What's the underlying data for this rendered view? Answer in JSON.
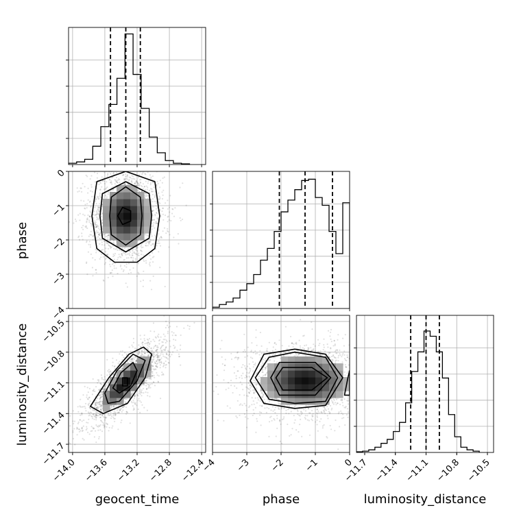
{
  "chart_data": {
    "type": "corner",
    "parameters": [
      "geocent_time",
      "phase",
      "luminosity_distance"
    ],
    "grid": true,
    "panels": [
      {
        "id": "hist-geocent_time",
        "type": "histogram",
        "parameter": "geocent_time",
        "xlim": [
          -14.05,
          -12.35
        ],
        "xticks": [
          -14.0,
          -13.6,
          -13.2,
          -12.8,
          -12.4
        ],
        "xtick_labels": [
          "−14.0",
          "−13.6",
          "−13.2",
          "−12.8",
          "−12.4"
        ],
        "bins": [
          {
            "x0": -14.05,
            "x1": -13.95,
            "y": 0.01
          },
          {
            "x0": -13.95,
            "x1": -13.85,
            "y": 0.02
          },
          {
            "x0": -13.85,
            "x1": -13.75,
            "y": 0.04
          },
          {
            "x0": -13.75,
            "x1": -13.65,
            "y": 0.14
          },
          {
            "x0": -13.65,
            "x1": -13.55,
            "y": 0.29
          },
          {
            "x0": -13.55,
            "x1": -13.45,
            "y": 0.46
          },
          {
            "x0": -13.45,
            "x1": -13.35,
            "y": 0.66
          },
          {
            "x0": -13.35,
            "x1": -13.25,
            "y": 1.0
          },
          {
            "x0": -13.25,
            "x1": -13.15,
            "y": 0.69
          },
          {
            "x0": -13.15,
            "x1": -13.05,
            "y": 0.43
          },
          {
            "x0": -13.05,
            "x1": -12.95,
            "y": 0.21
          },
          {
            "x0": -12.95,
            "x1": -12.85,
            "y": 0.09
          },
          {
            "x0": -12.85,
            "x1": -12.75,
            "y": 0.03
          },
          {
            "x0": -12.75,
            "x1": -12.65,
            "y": 0.01
          },
          {
            "x0": -12.65,
            "x1": -12.55,
            "y": 0.005
          }
        ],
        "quantiles": [
          -13.53,
          -13.34,
          -13.16
        ]
      },
      {
        "id": "hist-phase",
        "type": "histogram",
        "parameter": "phase",
        "xlim": [
          -4.0,
          0.0
        ],
        "xticks": [
          -4,
          -3,
          -2,
          -1,
          0
        ],
        "xtick_labels": [
          "−4",
          "−3",
          "−2",
          "−1",
          "0"
        ],
        "bins": [
          {
            "x0": -4.0,
            "x1": -3.8,
            "y": 0.01
          },
          {
            "x0": -3.8,
            "x1": -3.6,
            "y": 0.03
          },
          {
            "x0": -3.6,
            "x1": -3.4,
            "y": 0.05
          },
          {
            "x0": -3.4,
            "x1": -3.2,
            "y": 0.08
          },
          {
            "x0": -3.2,
            "x1": -3.0,
            "y": 0.14
          },
          {
            "x0": -3.0,
            "x1": -2.8,
            "y": 0.19
          },
          {
            "x0": -2.8,
            "x1": -2.6,
            "y": 0.26
          },
          {
            "x0": -2.6,
            "x1": -2.4,
            "y": 0.37
          },
          {
            "x0": -2.4,
            "x1": -2.2,
            "y": 0.46
          },
          {
            "x0": -2.2,
            "x1": -2.0,
            "y": 0.59
          },
          {
            "x0": -2.0,
            "x1": -1.8,
            "y": 0.74
          },
          {
            "x0": -1.8,
            "x1": -1.6,
            "y": 0.83
          },
          {
            "x0": -1.6,
            "x1": -1.4,
            "y": 0.91
          },
          {
            "x0": -1.4,
            "x1": -1.2,
            "y": 0.98
          },
          {
            "x0": -1.2,
            "x1": -1.0,
            "y": 0.99
          },
          {
            "x0": -1.0,
            "x1": -0.8,
            "y": 0.85
          },
          {
            "x0": -0.8,
            "x1": -0.6,
            "y": 0.79
          },
          {
            "x0": -0.6,
            "x1": -0.4,
            "y": 0.59
          },
          {
            "x0": -0.4,
            "x1": -0.2,
            "y": 0.42
          },
          {
            "x0": -0.2,
            "x1": 0.0,
            "y": 0.81
          }
        ],
        "quantiles": [
          -2.05,
          -1.3,
          -0.5
        ]
      },
      {
        "id": "hist-luminosity_distance",
        "type": "histogram",
        "parameter": "luminosity_distance",
        "xlim": [
          -11.78,
          -10.44
        ],
        "xticks": [
          -11.7,
          -11.4,
          -11.1,
          -10.8,
          -10.5
        ],
        "xtick_labels": [
          "−11.7",
          "−11.4",
          "−11.1",
          "−10.8",
          "−10.5"
        ],
        "bins": [
          {
            "x0": -11.78,
            "x1": -11.72,
            "y": 0.005
          },
          {
            "x0": -11.72,
            "x1": -11.66,
            "y": 0.01
          },
          {
            "x0": -11.66,
            "x1": -11.6,
            "y": 0.02
          },
          {
            "x0": -11.6,
            "x1": -11.54,
            "y": 0.04
          },
          {
            "x0": -11.54,
            "x1": -11.48,
            "y": 0.07
          },
          {
            "x0": -11.48,
            "x1": -11.42,
            "y": 0.1
          },
          {
            "x0": -11.42,
            "x1": -11.36,
            "y": 0.16
          },
          {
            "x0": -11.36,
            "x1": -11.3,
            "y": 0.23
          },
          {
            "x0": -11.3,
            "x1": -11.24,
            "y": 0.38
          },
          {
            "x0": -11.24,
            "x1": -11.18,
            "y": 0.62
          },
          {
            "x0": -11.18,
            "x1": -11.12,
            "y": 0.77
          },
          {
            "x0": -11.12,
            "x1": -11.06,
            "y": 0.93
          },
          {
            "x0": -11.06,
            "x1": -11.0,
            "y": 0.89
          },
          {
            "x0": -11.0,
            "x1": -10.94,
            "y": 0.77
          },
          {
            "x0": -10.94,
            "x1": -10.88,
            "y": 0.57
          },
          {
            "x0": -10.88,
            "x1": -10.82,
            "y": 0.29
          },
          {
            "x0": -10.82,
            "x1": -10.76,
            "y": 0.12
          },
          {
            "x0": -10.76,
            "x1": -10.7,
            "y": 0.04
          },
          {
            "x0": -10.7,
            "x1": -10.64,
            "y": 0.02
          },
          {
            "x0": -10.64,
            "x1": -10.58,
            "y": 0.01
          }
        ],
        "quantiles": [
          -11.25,
          -11.1,
          -10.97
        ]
      },
      {
        "id": "scatter-geocent_time-phase",
        "type": "2d-density",
        "x": "geocent_time",
        "y": "phase",
        "xlim": [
          -14.05,
          -12.35
        ],
        "ylim": [
          -4.0,
          0.0
        ],
        "yticks": [
          0,
          -1,
          -2,
          -3,
          -4
        ],
        "ytick_labels": [
          "0",
          "−1",
          "−2",
          "−3",
          "−4"
        ],
        "center": [
          -13.34,
          -1.3
        ],
        "sigma": [
          0.18,
          0.55
        ],
        "correlation": 0.0,
        "density_peak": [
          -13.34,
          -1.3
        ],
        "contours": [
          [
            [
              -13.34,
              -0.45
            ],
            [
              -13.16,
              -0.75
            ],
            [
              -13.14,
              -1.3
            ],
            [
              -13.16,
              -1.85
            ],
            [
              -13.34,
              -2.15
            ],
            [
              -13.52,
              -1.85
            ],
            [
              -13.54,
              -1.3
            ],
            [
              -13.52,
              -0.75
            ]
          ],
          [
            [
              -13.34,
              -0.3
            ],
            [
              -13.05,
              -0.65
            ],
            [
              -13.02,
              -1.3
            ],
            [
              -13.05,
              -1.95
            ],
            [
              -13.34,
              -2.35
            ],
            [
              -13.63,
              -1.95
            ],
            [
              -13.66,
              -1.3
            ],
            [
              -13.63,
              -0.65
            ]
          ],
          [
            [
              -13.34,
              0.0
            ],
            [
              -12.98,
              -0.3
            ],
            [
              -12.92,
              -1.3
            ],
            [
              -12.98,
              -2.25
            ],
            [
              -13.2,
              -2.65
            ],
            [
              -13.48,
              -2.65
            ],
            [
              -13.7,
              -2.25
            ],
            [
              -13.76,
              -1.3
            ],
            [
              -13.7,
              -0.3
            ]
          ],
          [
            [
              -13.38,
              -1.05
            ],
            [
              -13.28,
              -1.15
            ],
            [
              -13.28,
              -1.45
            ],
            [
              -13.38,
              -1.55
            ],
            [
              -13.44,
              -1.3
            ]
          ]
        ]
      },
      {
        "id": "scatter-geocent_time-luminosity_distance",
        "type": "2d-density",
        "x": "geocent_time",
        "y": "luminosity_distance",
        "xlim": [
          -14.05,
          -12.35
        ],
        "ylim": [
          -11.78,
          -10.44
        ],
        "yticks": [
          -11.7,
          -11.4,
          -11.1,
          -10.8,
          -10.5
        ],
        "ytick_labels": [
          "−11.7",
          "−11.4",
          "−11.1",
          "−10.8",
          "−10.5"
        ],
        "center": [
          -13.34,
          -11.1
        ],
        "sigma": [
          0.2,
          0.16
        ],
        "correlation": 0.8,
        "density_peak": [
          -13.34,
          -11.05
        ],
        "contours": [
          [
            [
              -13.5,
              -11.15
            ],
            [
              -13.4,
              -11.0
            ],
            [
              -13.25,
              -10.9
            ],
            [
              -13.2,
              -10.98
            ],
            [
              -13.28,
              -11.13
            ],
            [
              -13.42,
              -11.2
            ]
          ],
          [
            [
              -13.6,
              -11.2
            ],
            [
              -13.45,
              -10.98
            ],
            [
              -13.25,
              -10.82
            ],
            [
              -13.1,
              -10.88
            ],
            [
              -13.2,
              -11.08
            ],
            [
              -13.42,
              -11.28
            ],
            [
              -13.56,
              -11.3
            ]
          ],
          [
            [
              -13.78,
              -11.33
            ],
            [
              -13.55,
              -11.05
            ],
            [
              -13.3,
              -10.82
            ],
            [
              -13.12,
              -10.75
            ],
            [
              -13.02,
              -10.82
            ],
            [
              -13.1,
              -11.05
            ],
            [
              -13.32,
              -11.3
            ],
            [
              -13.62,
              -11.4
            ]
          ],
          [
            [
              -13.38,
              -11.13
            ],
            [
              -13.32,
              -11.13
            ],
            [
              -13.32,
              -11.05
            ],
            [
              -13.38,
              -11.05
            ]
          ]
        ]
      },
      {
        "id": "scatter-phase-luminosity_distance",
        "type": "2d-density",
        "x": "phase",
        "y": "luminosity_distance",
        "xlim": [
          -4.0,
          0.0
        ],
        "ylim": [
          -11.78,
          -10.44
        ],
        "center": [
          -1.3,
          -11.08
        ],
        "sigma": [
          0.75,
          0.15
        ],
        "correlation": 0.0,
        "density_peak": [
          -1.5,
          -11.05
        ],
        "contours": [
          [
            [
              -2.15,
              -11.05
            ],
            [
              -1.95,
              -10.95
            ],
            [
              -1.1,
              -10.95
            ],
            [
              -0.65,
              -11.05
            ],
            [
              -1.1,
              -11.17
            ],
            [
              -1.95,
              -11.17
            ]
          ],
          [
            [
              -2.3,
              -11.05
            ],
            [
              -2.05,
              -10.9
            ],
            [
              -1.0,
              -10.9
            ],
            [
              -0.55,
              -11.05
            ],
            [
              -1.0,
              -11.22
            ],
            [
              -2.05,
              -11.22
            ]
          ],
          [
            [
              -2.75,
              -11.05
            ],
            [
              -2.35,
              -10.85
            ],
            [
              -1.6,
              -10.8
            ],
            [
              -0.7,
              -10.85
            ],
            [
              -0.35,
              -11.05
            ],
            [
              -0.7,
              -11.28
            ],
            [
              -1.6,
              -11.3
            ],
            [
              -2.35,
              -11.26
            ]
          ],
          [
            [
              -2.9,
              -11.08
            ],
            [
              -2.5,
              -10.82
            ],
            [
              -1.6,
              -10.77
            ],
            [
              -0.7,
              -10.82
            ],
            [
              -0.2,
              -11.05
            ],
            [
              -0.7,
              -11.32
            ],
            [
              -1.6,
              -11.35
            ],
            [
              -2.5,
              -11.3
            ]
          ],
          [
            [
              -0.15,
              -11.22
            ],
            [
              -0.05,
              -11.05
            ],
            [
              0.0,
              -10.98
            ],
            [
              0.0,
              -11.22
            ]
          ]
        ]
      }
    ]
  }
}
